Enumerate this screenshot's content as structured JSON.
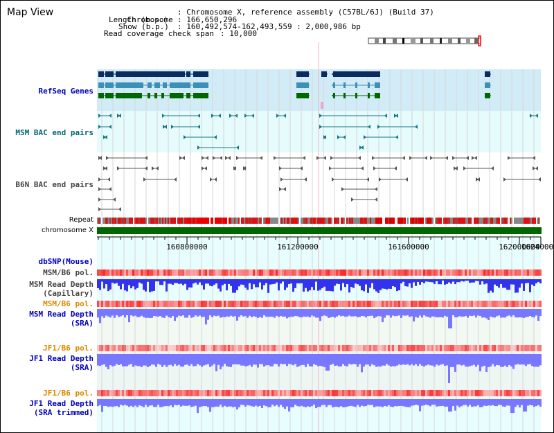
{
  "title": "Map View",
  "info": {
    "chromosome_key": "Chromosome",
    "chromosome_val": "Chromosome X, reference assembly (C57BL/6J) (Build 37)",
    "length_key": "Length (b.p.)",
    "length_val": "166,650,296",
    "show_key": "Show (b.p.)",
    "show_val": "160,492,574-162,493,559 : 2,000,986 bp",
    "coverage_key": "Read coverage check span",
    "coverage_val": "10,000"
  },
  "tracks": {
    "refseq": "RefSeq Genes",
    "msm_bac": "MSM BAC end pairs",
    "b6n_bac": "B6N BAC end pairs",
    "repeat": "Repeat",
    "chromosome": "chromosome X",
    "dbsnp": "dbSNP(Mouse)",
    "msm_pol1": "MSM/B6 pol.",
    "msm_depth_cap_1": "MSM Read Depth",
    "msm_depth_cap_2": "(Capillary)",
    "msm_pol2": "MSM/B6 pol.",
    "msm_depth_sra_1": "MSM Read Depth",
    "msm_depth_sra_2": "(SRA)",
    "jf1_pol1": "JF1/B6 pol.",
    "jf1_depth_sra_1": "JF1 Read Depth",
    "jf1_depth_sra_2": "(SRA)",
    "jf1_pol2": "JF1/B6 pol.",
    "jf1_depth_trim_1": "JF1 Read Depth",
    "jf1_depth_trim_2": "(SRA trimmed)"
  },
  "axis": {
    "ticks": [
      "160800000",
      "161200000",
      "161600000",
      "162000000",
      "1624000"
    ]
  },
  "colors": {
    "refseq_bg": "#d2ecf7",
    "bac_bg": "#e6fbfb",
    "gene_dark": "#0a2a60",
    "gene_mid": "#3a90b8",
    "gene_green": "#006600",
    "chrom_green": "#006600",
    "depth_blue": "#3333ee",
    "depth_light": "#7777ff"
  }
}
